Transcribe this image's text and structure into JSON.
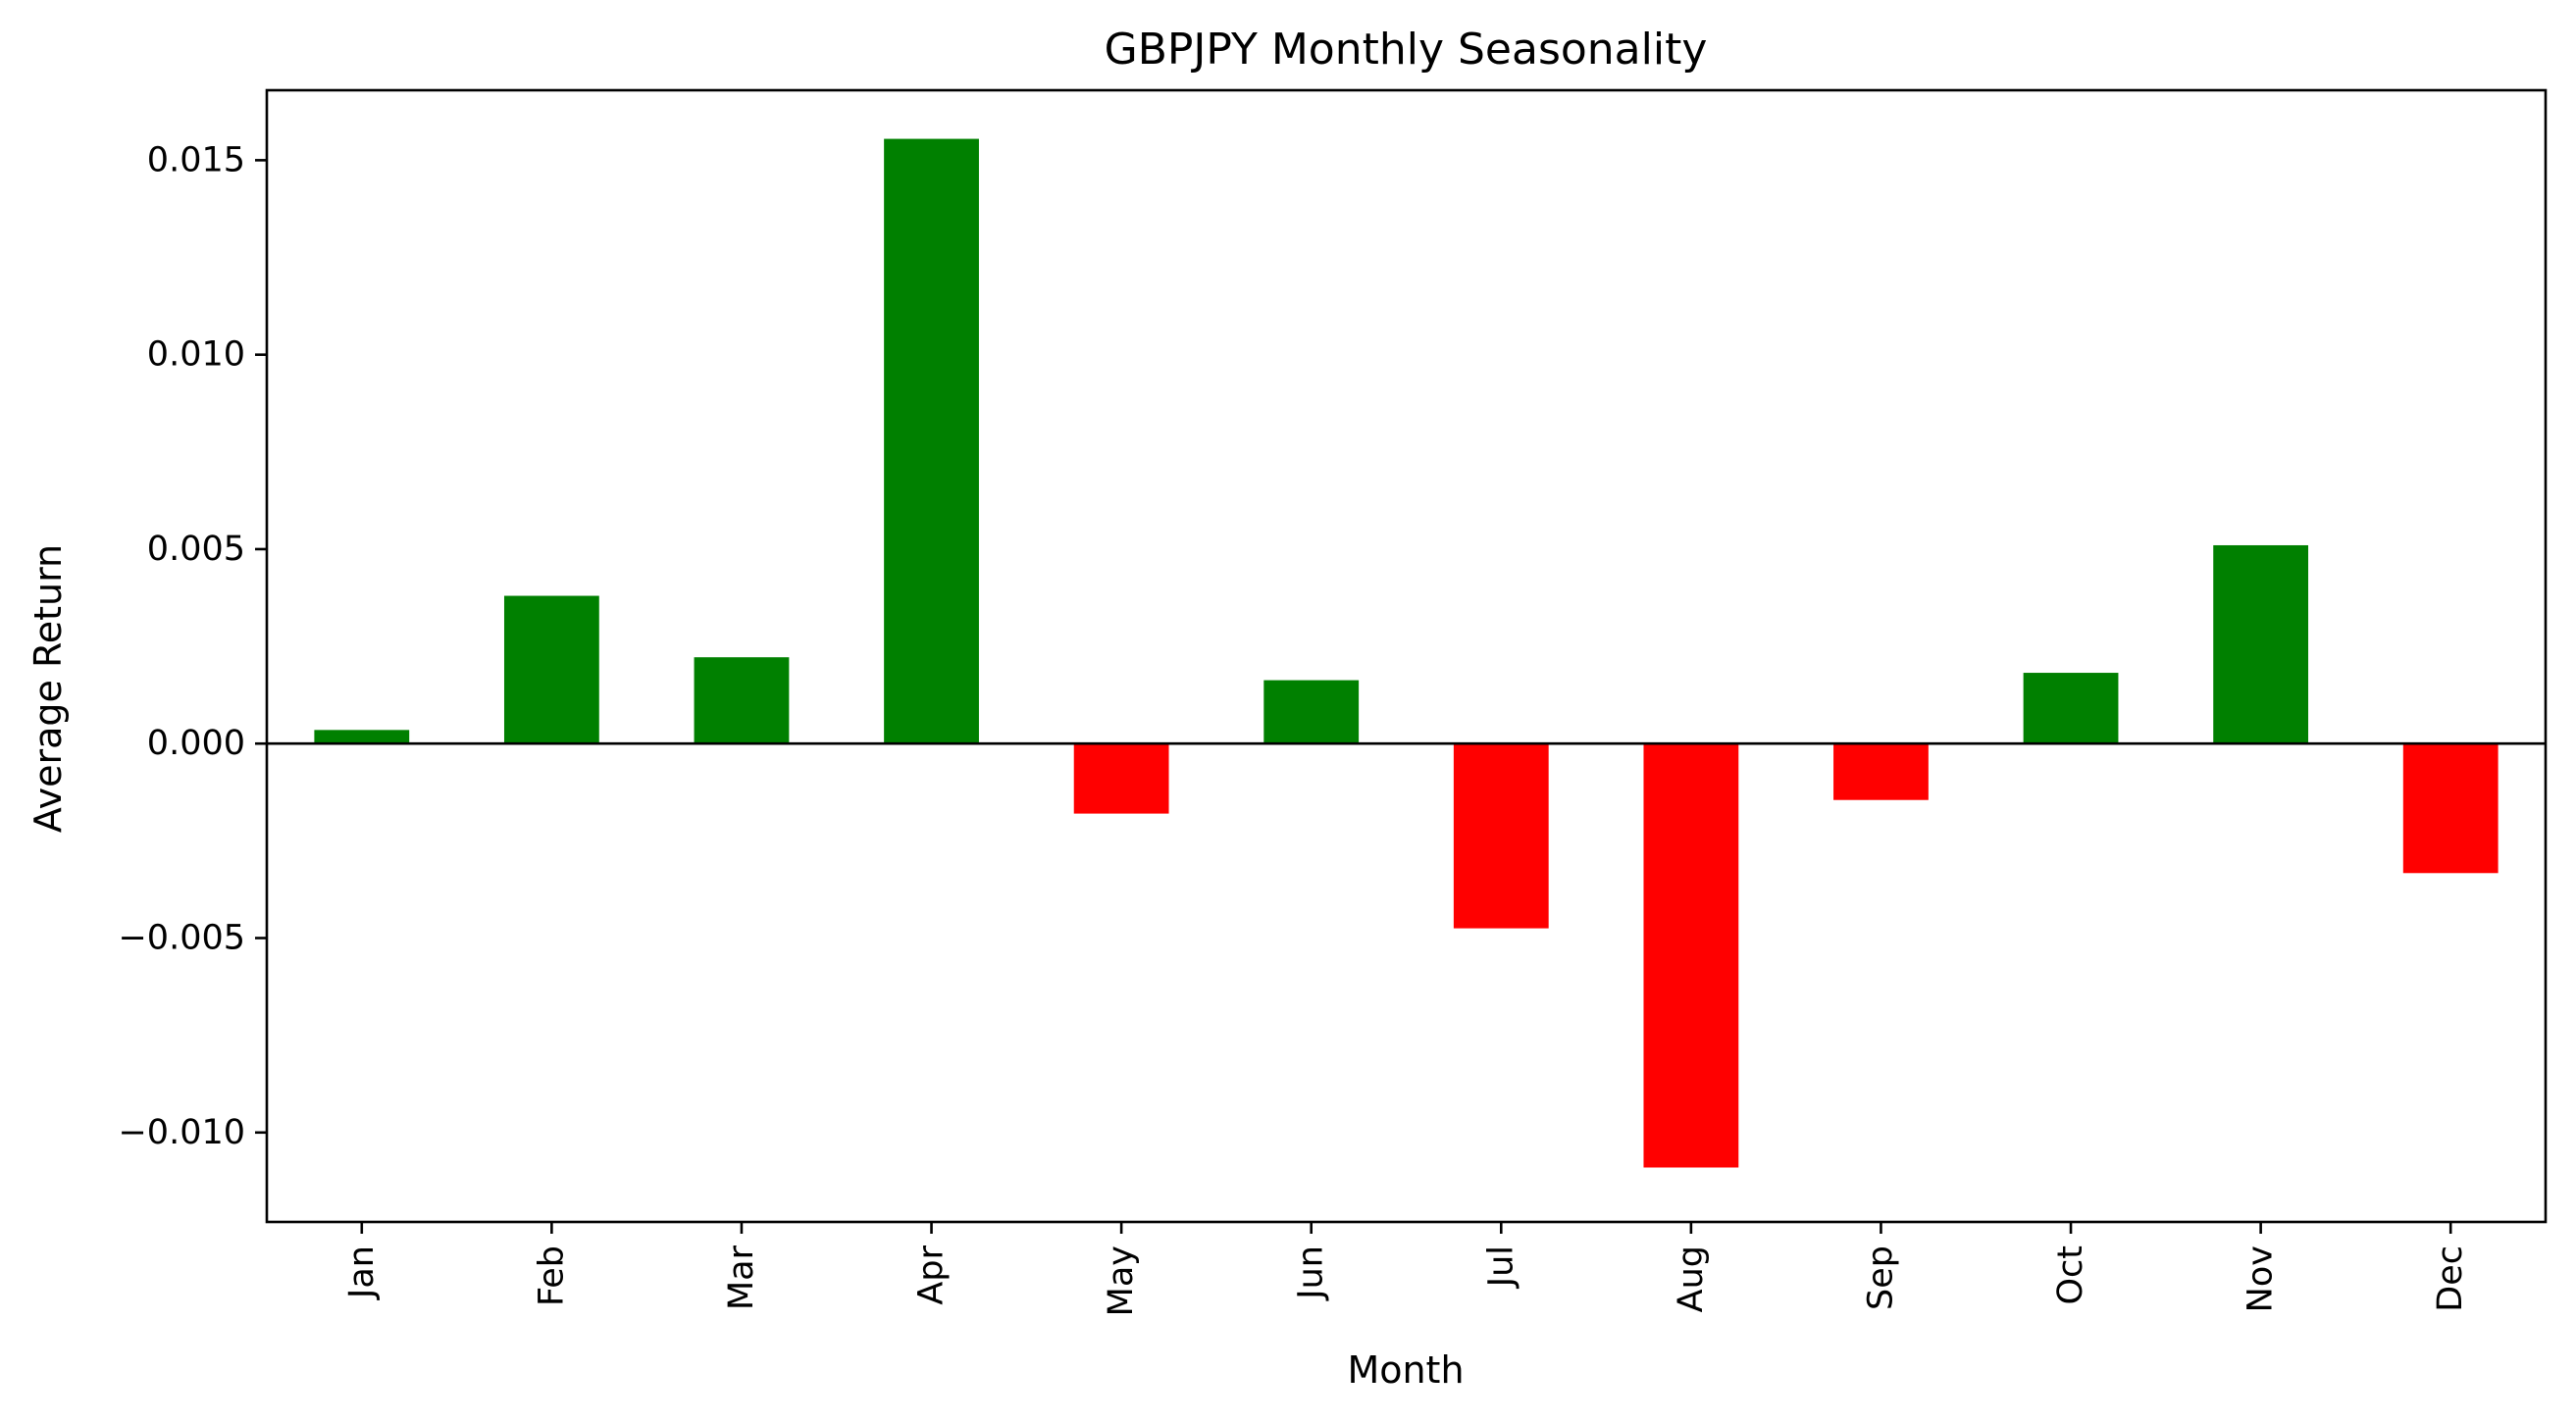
{
  "chart_data": {
    "type": "bar",
    "title": "GBPJPY Monthly Seasonality",
    "xlabel": "Month",
    "ylabel": "Average Return",
    "categories": [
      "Jan",
      "Feb",
      "Mar",
      "Apr",
      "May",
      "Jun",
      "Jul",
      "Aug",
      "Sep",
      "Oct",
      "Nov",
      "Dec"
    ],
    "values": [
      0.00035,
      0.0038,
      0.00222,
      0.01555,
      -0.0018,
      0.00163,
      -0.00475,
      -0.0109,
      -0.00145,
      0.00182,
      0.0051,
      -0.00333
    ],
    "ylim": [
      -0.0123,
      0.0168
    ],
    "yticks": [
      -0.01,
      -0.005,
      0.0,
      0.005,
      0.01,
      0.015
    ],
    "ytick_labels": [
      "−0.010",
      "−0.005",
      "0.000",
      "0.005",
      "0.010",
      "0.015"
    ],
    "zero_line": true,
    "grid": false,
    "legend": "none",
    "colors": {
      "positive": "#008000",
      "negative": "#ff0000",
      "axis": "#000000"
    }
  }
}
